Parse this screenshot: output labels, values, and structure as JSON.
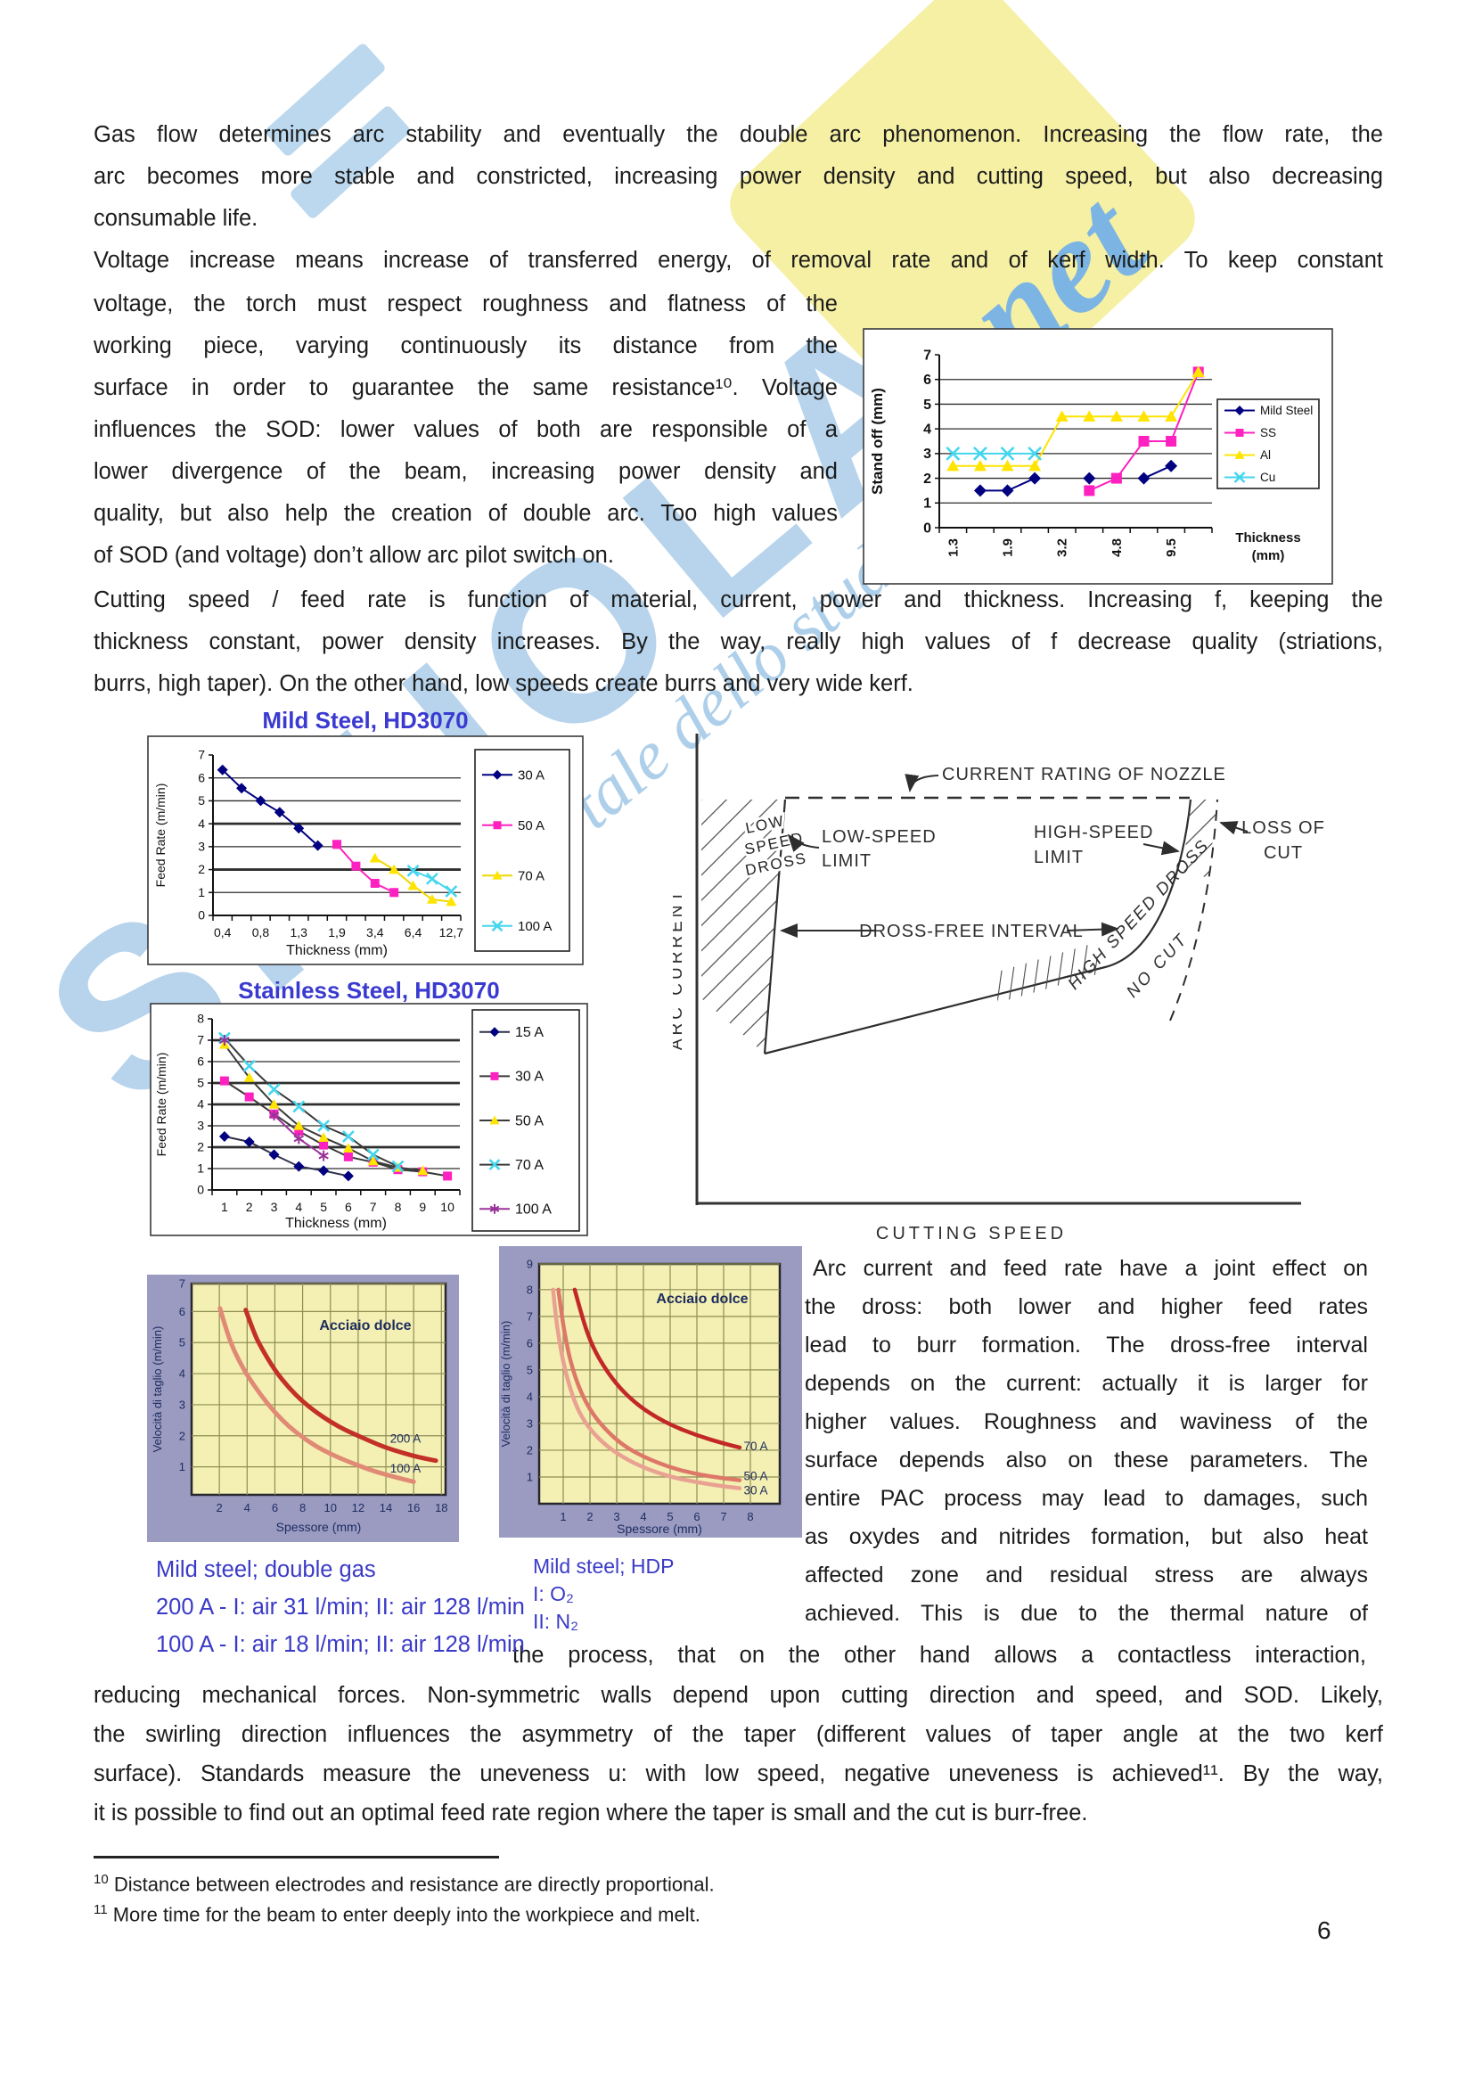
{
  "watermark": {
    "word": "SKUOLA",
    "net": ".net",
    "tagline": "il portale dello studente"
  },
  "body": {
    "p1": [
      "Gas flow determines arc stability and eventually the double arc phenomenon. Increasing the flow rate, the",
      "arc becomes more stable and constricted, increasing power density and cutting speed, but also decreasing",
      "consumable life."
    ],
    "p2_full": "Voltage increase means increase of transferred energy, of removal rate and of kerf width. To keep constant",
    "p2_wrap": [
      "voltage, the torch must respect roughness and flatness of the",
      "working piece, varying continuously its distance from the",
      "surface in order to guarantee the same resistance¹⁰. Voltage",
      "influences the SOD: lower values of both are responsible of a",
      "lower divergence of the beam, increasing power density and",
      "quality, but also help the creation of double arc. Too high values",
      "of SOD (and voltage) don’t allow arc pilot switch on."
    ],
    "p3": [
      "Cutting speed / feed rate is function of material, current, power and thickness. Increasing f, keeping the",
      "thickness constant, power density increases. By the way, really high values of f decrease quality (striations,",
      "burrs, high taper). On the other hand, low speeds create burrs and very wide kerf."
    ],
    "right_col": [
      "Arc current and feed rate have a joint effect on",
      "the dross: both lower and higher feed rates",
      "lead to burr formation. The dross-free interval",
      "depends on the current: actually it is larger for",
      "higher values. Roughness and waviness of the",
      "surface depends also on these parameters. The",
      "entire PAC process may lead to damages, such",
      "as oxydes and nitrides formation, but also heat",
      "affected zone and residual stress are always",
      "achieved. This is due to the thermal nature of"
    ],
    "wrap_line": "the process, that on the other hand allows a contactless interaction,",
    "p5": [
      "reducing mechanical forces. Non-symmetric walls depend upon cutting direction and speed, and SOD. Likely,",
      "the swirling direction influences the asymmetry of the taper (different values of taper angle at the two kerf",
      "surface). Standards measure the uneveness u: with low speed, negative uneveness is achieved¹¹. By the way,",
      "it is possible to find out an optimal feed rate region where the taper is small and the cut is burr-free."
    ]
  },
  "captions": {
    "left": [
      "Mild steel; double gas",
      "200 A - I: air 31 l/min; II: air 128 l/min",
      "100 A - I: air 18 l/min; II: air 128 l/min"
    ],
    "right": [
      "Mild steel; HDP",
      "I: O₂",
      "II: N₂"
    ]
  },
  "footnotes": [
    {
      "marker": "10",
      "text": "Distance between electrodes and resistance are directly proportional."
    },
    {
      "marker": "11",
      "text": "More time for the beam to enter deeply into the workpiece and melt."
    }
  ],
  "page_number": "6",
  "diagram": {
    "ylabel": "ARC CURRENT",
    "xlabel": "CUTTING SPEED",
    "nozzle": "CURRENT RATING OF NOZZLE",
    "low_dross": [
      "LOW",
      "SPEED",
      "DROSS"
    ],
    "low_limit": [
      "LOW-SPEED",
      "LIMIT"
    ],
    "high_limit": [
      "HIGH-SPEED",
      "LIMIT"
    ],
    "interval": "DROSS-FREE INTERVAL",
    "loss": [
      "LOSS OF",
      "CUT"
    ],
    "hs_dross": "HIGH SPEED DROSS",
    "no_cut": "NO CUT"
  },
  "chart_data": [
    {
      "id": "standoff",
      "type": "line",
      "title": "",
      "ylabel": "Stand off (mm)",
      "xlabel": "Thickness (mm)",
      "ylim": [
        0,
        7
      ],
      "grid": true,
      "legend_position": "right",
      "x_labels": [
        "1.3",
        "",
        "1.9",
        "",
        "3.2",
        "",
        "4.8",
        "",
        "9.5",
        ""
      ],
      "series": [
        {
          "name": "Mild Steel",
          "marker": "diamond",
          "color": "#000080",
          "line": "#000080",
          "values": [
            null,
            1.5,
            1.5,
            2,
            null,
            2,
            null,
            2,
            2.5,
            null
          ]
        },
        {
          "name": "SS",
          "marker": "square",
          "color": "#ff20c0",
          "line": "#ff20c0",
          "values": [
            null,
            null,
            null,
            null,
            null,
            1.5,
            2,
            3.5,
            3.5,
            6.3
          ]
        },
        {
          "name": "Al",
          "marker": "triangle",
          "color": "#ffe400",
          "line": "#ffe400",
          "values": [
            2.5,
            2.5,
            2.5,
            2.5,
            4.5,
            4.5,
            4.5,
            4.5,
            4.5,
            6.3
          ]
        },
        {
          "name": "Cu",
          "marker": "x",
          "color": "#45d6ee",
          "line": "#45d6ee",
          "values": [
            3,
            3,
            3,
            3,
            null,
            null,
            null,
            null,
            null,
            null
          ]
        }
      ]
    },
    {
      "id": "mild",
      "type": "line",
      "title": "Mild Steel, HD3070",
      "ylabel": "Feed Rate (m/min)",
      "xlabel": "Thickness (mm)",
      "ylim": [
        0,
        7
      ],
      "grid": true,
      "legend_position": "right",
      "x_labels": [
        "0,4",
        "",
        "0,8",
        "",
        "1,3",
        "",
        "1,9",
        "",
        "3,4",
        "",
        "6,4",
        "",
        "12,7"
      ],
      "series": [
        {
          "name": "30 A",
          "marker": "diamond",
          "color": "#000080",
          "line": "#000080",
          "values": [
            6.35,
            5.55,
            5,
            4.5,
            3.8,
            3.05,
            null,
            null,
            null,
            null,
            null,
            null,
            null
          ]
        },
        {
          "name": "50 A",
          "marker": "square",
          "color": "#ff20c0",
          "line": "#ff20c0",
          "values": [
            null,
            null,
            null,
            null,
            null,
            null,
            3.1,
            2.15,
            1.4,
            1,
            null,
            null,
            null
          ]
        },
        {
          "name": "70 A",
          "marker": "triangle",
          "color": "#ffe400",
          "line": "#eed800",
          "values": [
            null,
            null,
            null,
            null,
            null,
            null,
            null,
            null,
            2.5,
            2,
            1.3,
            0.7,
            0.6
          ]
        },
        {
          "name": "100 A",
          "marker": "x",
          "color": "#45d6ee",
          "line": "#45d6ee",
          "values": [
            null,
            null,
            null,
            null,
            null,
            null,
            null,
            null,
            null,
            null,
            1.95,
            1.6,
            1.05
          ]
        }
      ]
    },
    {
      "id": "stainless",
      "type": "line",
      "title": "Stainless Steel, HD3070",
      "ylabel": "Feed Rate (m/min)",
      "xlabel": "Thickness (mm)",
      "ylim": [
        0,
        8
      ],
      "grid": true,
      "legend_position": "right",
      "x_labels": [
        "1",
        "2",
        "3",
        "4",
        "5",
        "6",
        "7",
        "8",
        "9",
        "10"
      ],
      "series": [
        {
          "name": "15 A",
          "marker": "diamond",
          "color": "#000080",
          "line": "#30304a",
          "values": [
            2.5,
            2.25,
            1.65,
            1.1,
            0.9,
            0.65,
            null,
            null,
            null,
            null
          ]
        },
        {
          "name": "30 A",
          "marker": "square",
          "color": "#ff20c0",
          "line": "#3a3a3a",
          "values": [
            5.1,
            4.35,
            3.55,
            2.75,
            2.1,
            1.55,
            1.3,
            0.95,
            0.85,
            0.65
          ]
        },
        {
          "name": "50 A",
          "marker": "triangle",
          "color": "#ffe400",
          "line": "#3a3a3a",
          "values": [
            6.8,
            5.25,
            4,
            3,
            2.45,
            1.95,
            1.35,
            1.05,
            0.9,
            null
          ]
        },
        {
          "name": "70 A",
          "marker": "x",
          "color": "#45d6ee",
          "line": "#3a3a3a",
          "values": [
            7.1,
            5.8,
            4.7,
            3.9,
            3,
            2.5,
            1.65,
            1.1,
            null,
            null
          ]
        },
        {
          "name": "100 A",
          "marker": "star",
          "color": "#993399",
          "line": "#993399",
          "values": [
            7,
            null,
            3.5,
            2.4,
            1.6,
            null,
            null,
            null,
            null,
            null
          ]
        }
      ]
    },
    {
      "id": "acciaio200",
      "type": "curve",
      "title": "Acciaio dolce",
      "ylabel": "Velocità di taglio (m/min)",
      "xlabel": "Spessore (mm)",
      "xticks": [
        2,
        4,
        6,
        8,
        10,
        12,
        14,
        16,
        18
      ],
      "yticks": [
        1,
        2,
        3,
        4,
        5,
        6,
        7
      ],
      "xlim": [
        0,
        18.3
      ],
      "ylim": [
        0.1,
        6.9
      ],
      "series": [
        {
          "name": "200 A",
          "color": "#c23028",
          "width": 5,
          "label_at": [
            14.3,
            1.78
          ],
          "points": [
            [
              3.9,
              6.05
            ],
            [
              4.5,
              5.3
            ],
            [
              5,
              4.85
            ],
            [
              6,
              4.1
            ],
            [
              7,
              3.55
            ],
            [
              8,
              3.1
            ],
            [
              9,
              2.75
            ],
            [
              10,
              2.45
            ],
            [
              11,
              2.2
            ],
            [
              12,
              2
            ],
            [
              13,
              1.8
            ],
            [
              14,
              1.62
            ],
            [
              15,
              1.48
            ],
            [
              16,
              1.35
            ],
            [
              17,
              1.25
            ],
            [
              17.6,
              1.2
            ]
          ]
        },
        {
          "name": "100 A",
          "color": "#e08a76",
          "width": 5,
          "label_at": [
            14.3,
            0.82
          ],
          "points": [
            [
              2.05,
              6.1
            ],
            [
              2.5,
              5.4
            ],
            [
              3,
              4.8
            ],
            [
              3.5,
              4.35
            ],
            [
              4,
              3.95
            ],
            [
              5,
              3.3
            ],
            [
              6,
              2.75
            ],
            [
              7,
              2.3
            ],
            [
              8,
              1.95
            ],
            [
              9,
              1.65
            ],
            [
              10,
              1.42
            ],
            [
              11,
              1.22
            ],
            [
              12,
              1.05
            ],
            [
              13,
              0.88
            ],
            [
              14,
              0.75
            ],
            [
              15,
              0.63
            ],
            [
              16,
              0.52
            ]
          ]
        }
      ]
    },
    {
      "id": "acciaioHDP",
      "type": "curve",
      "title": "Acciaio dolce",
      "ylabel": "Velocità di taglio (m/min)",
      "xlabel": "Spessore (mm)",
      "xticks": [
        1,
        2,
        3,
        4,
        5,
        6,
        7,
        8
      ],
      "yticks": [
        1,
        2,
        3,
        4,
        5,
        6,
        7,
        8,
        9
      ],
      "xlim": [
        0.1,
        9.1
      ],
      "ylim": [
        0,
        8.96
      ],
      "series": [
        {
          "name": "70 A",
          "color": "#c22828",
          "width": 4.5,
          "label_at": [
            7.75,
            2.0
          ],
          "points": [
            [
              1.43,
              8
            ],
            [
              1.7,
              7
            ],
            [
              2,
              6.1
            ],
            [
              2.4,
              5.3
            ],
            [
              3,
              4.45
            ],
            [
              3.6,
              3.85
            ],
            [
              4.2,
              3.4
            ],
            [
              5,
              2.95
            ],
            [
              6,
              2.55
            ],
            [
              7,
              2.25
            ],
            [
              7.6,
              2.1
            ]
          ]
        },
        {
          "name": "50 A",
          "color": "#dd7868",
          "width": 4.5,
          "label_at": [
            7.75,
            0.88
          ],
          "points": [
            [
              0.82,
              8
            ],
            [
              0.95,
              7
            ],
            [
              1.1,
              6.1
            ],
            [
              1.3,
              5.2
            ],
            [
              1.6,
              4.3
            ],
            [
              2,
              3.5
            ],
            [
              2.5,
              2.85
            ],
            [
              3.2,
              2.2
            ],
            [
              4,
              1.75
            ],
            [
              5,
              1.35
            ],
            [
              6,
              1.1
            ],
            [
              7,
              0.95
            ],
            [
              7.6,
              0.88
            ]
          ]
        },
        {
          "name": "30 A",
          "color": "#e9a192",
          "width": 4.5,
          "label_at": [
            7.75,
            0.35
          ],
          "points": [
            [
              0.62,
              8
            ],
            [
              0.72,
              7
            ],
            [
              0.85,
              6.1
            ],
            [
              1,
              5.3
            ],
            [
              1.2,
              4.5
            ],
            [
              1.5,
              3.6
            ],
            [
              1.9,
              2.9
            ],
            [
              2.5,
              2.25
            ],
            [
              3.2,
              1.75
            ],
            [
              4,
              1.35
            ],
            [
              5,
              1
            ],
            [
              6,
              0.8
            ],
            [
              7,
              0.65
            ],
            [
              7.6,
              0.58
            ]
          ]
        }
      ]
    }
  ]
}
